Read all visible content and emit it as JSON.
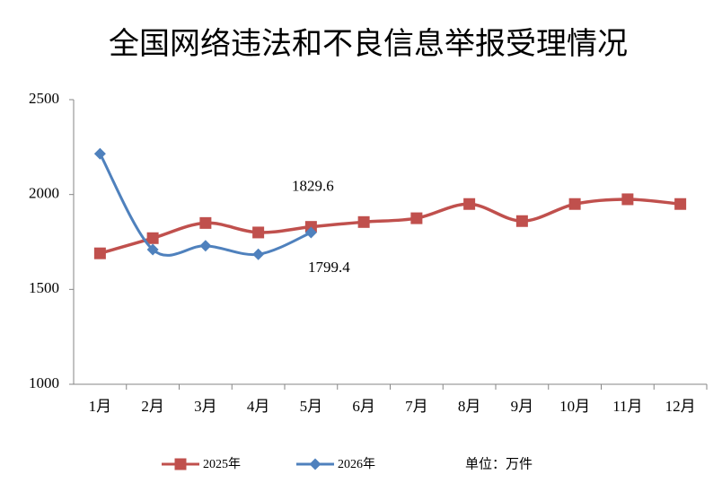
{
  "chart_data": {
    "type": "line",
    "title": "全国网络违法和不良信息举报受理情况",
    "categories": [
      "1月",
      "2月",
      "3月",
      "4月",
      "5月",
      "6月",
      "7月",
      "8月",
      "9月",
      "10月",
      "11月",
      "12月"
    ],
    "series": [
      {
        "name": "2025年",
        "color": "#c0504d",
        "values": [
          1690,
          1770,
          1850,
          1800,
          1829.6,
          1855,
          1875,
          1950,
          1860,
          1950,
          1975,
          1950
        ],
        "value_labels": [
          null,
          null,
          null,
          null,
          "1829.6",
          null,
          null,
          null,
          null,
          null,
          null,
          null
        ]
      },
      {
        "name": "2026年",
        "color": "#4f81bd",
        "values": [
          2215,
          1710,
          1730,
          1685,
          1799.4,
          null,
          null,
          null,
          null,
          null,
          null,
          null
        ],
        "value_labels": [
          null,
          null,
          null,
          null,
          "1799.4",
          null,
          null,
          null,
          null,
          null,
          null,
          null
        ]
      }
    ],
    "ylim": [
      1000,
      2500
    ],
    "yticks": [
      1000,
      1500,
      2000,
      2500
    ],
    "grid": false,
    "legend": "bottom",
    "unit_label": "单位：万件"
  }
}
